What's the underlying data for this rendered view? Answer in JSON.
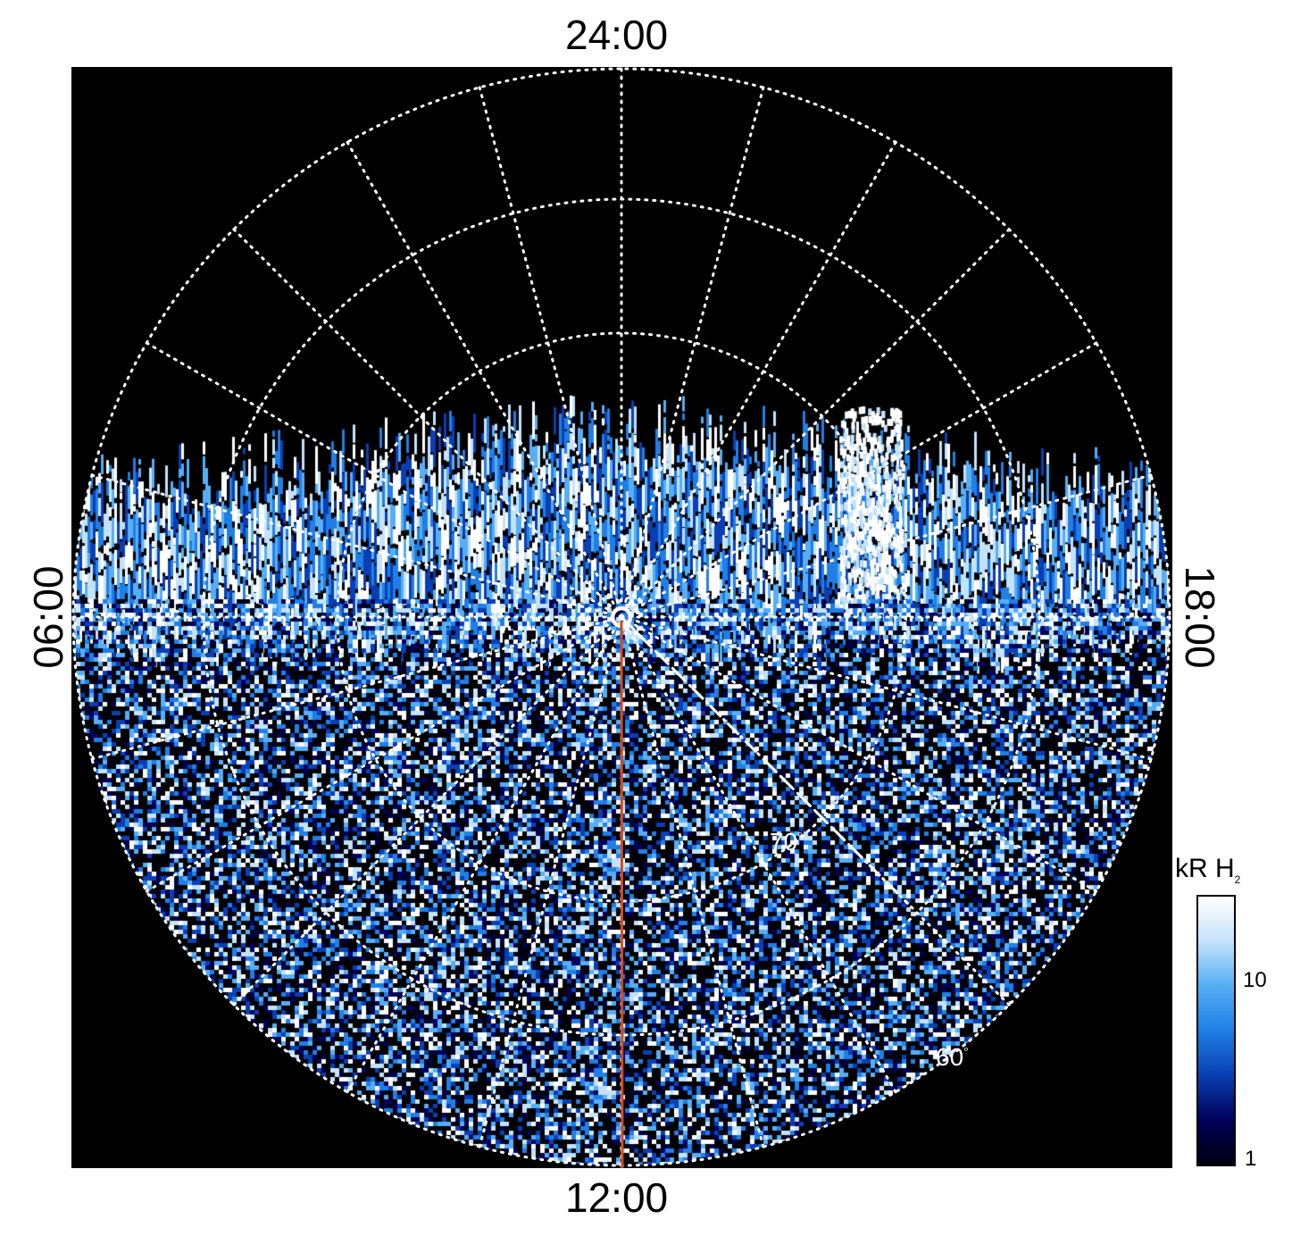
{
  "local_time_labels": {
    "top": "24:00",
    "bottom": "12:00",
    "left": "06:00",
    "right": "18:00"
  },
  "latitude_labels": {
    "inner": "70",
    "outer": "60",
    "degree_symbol": "°"
  },
  "colorbar": {
    "unit": "kR H",
    "unit_subscript": "2",
    "tick_labels": [
      "10",
      "1"
    ],
    "scale": "log",
    "range": [
      1,
      25
    ],
    "colors": [
      "#000010",
      "#00005a",
      "#0a3fb4",
      "#1f7fe6",
      "#56aef5",
      "#c4e3fb",
      "#ffffff"
    ]
  },
  "overlay_colors": {
    "grid": "#ffffff",
    "meridian_line": "#d24a1e",
    "background": "#000000"
  }
}
